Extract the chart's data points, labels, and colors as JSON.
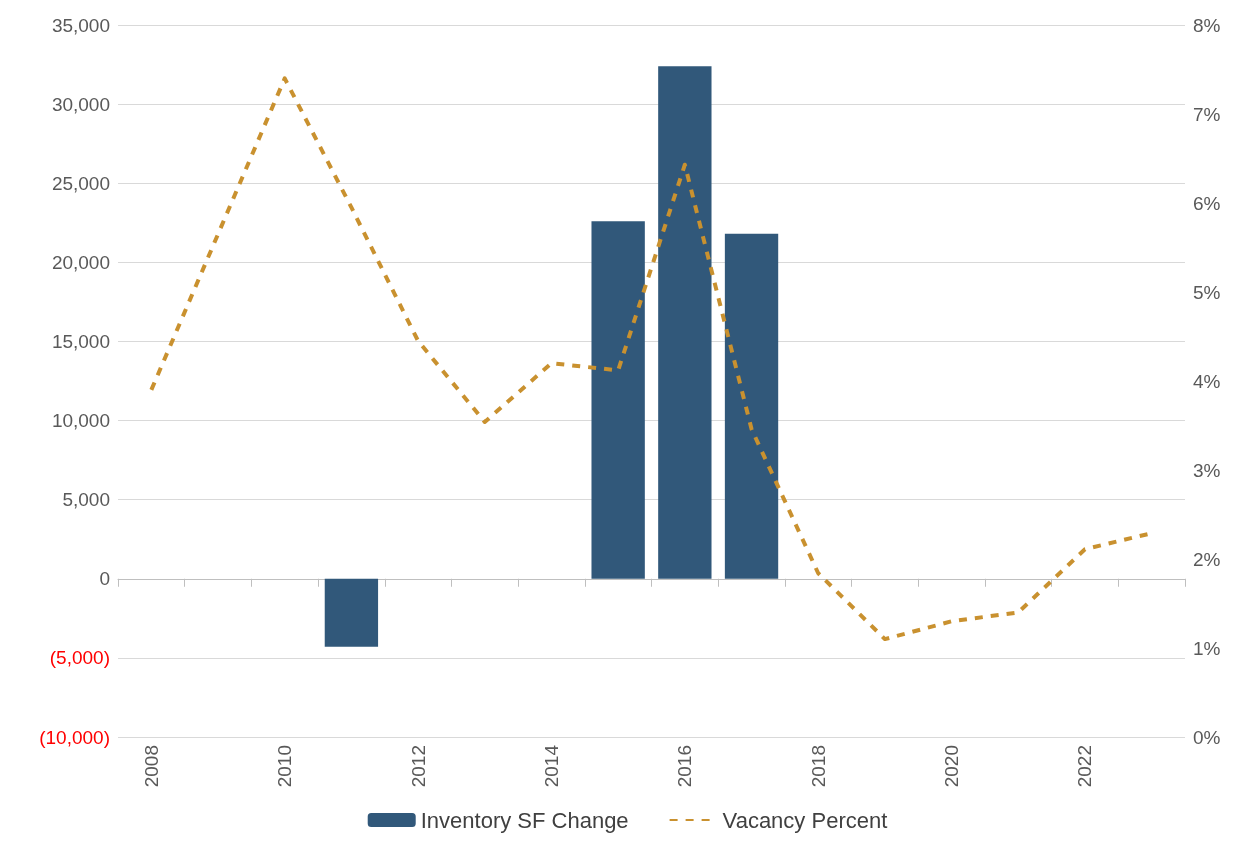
{
  "chart_data": {
    "type": "bar",
    "categories": [
      "2008",
      null,
      "2010",
      null,
      "2012",
      null,
      "2014",
      null,
      "2016",
      null,
      "2018",
      null,
      "2020",
      null,
      "2022",
      null
    ],
    "series": [
      {
        "name": "Inventory SF Change",
        "color": "#31587a",
        "values": [
          null,
          null,
          null,
          -4300,
          null,
          null,
          null,
          22600,
          32400,
          21800,
          null,
          null,
          null,
          null,
          null,
          null
        ]
      },
      {
        "name": "Vacancy Percent",
        "type": "line",
        "axis": "y2",
        "color": "#c9912f",
        "line_style": "dashed",
        "marker": "none",
        "values": [
          3.9,
          5.65,
          7.4,
          5.95,
          4.45,
          3.54,
          4.2,
          4.12,
          6.43,
          3.46,
          1.84,
          1.1,
          1.3,
          1.4,
          2.11,
          2.29
        ]
      }
    ],
    "ylim": [
      -10000,
      35000
    ],
    "yticks": [
      {
        "value": -10000,
        "label": "(10,000)"
      },
      {
        "value": -5000,
        "label": "(5,000)"
      },
      {
        "value": 0,
        "label": "0"
      },
      {
        "value": 5000,
        "label": "5,000"
      },
      {
        "value": 10000,
        "label": "10,000"
      },
      {
        "value": 15000,
        "label": "15,000"
      },
      {
        "value": 20000,
        "label": "20,000"
      },
      {
        "value": 25000,
        "label": "25,000"
      },
      {
        "value": 30000,
        "label": "30,000"
      },
      {
        "value": 35000,
        "label": "35,000"
      }
    ],
    "y2lim": [
      0,
      8
    ],
    "y2ticks": [
      {
        "value": 0,
        "label": "0%"
      },
      {
        "value": 1,
        "label": "1%"
      },
      {
        "value": 2,
        "label": "2%"
      },
      {
        "value": 3,
        "label": "3%"
      },
      {
        "value": 4,
        "label": "4%"
      },
      {
        "value": 5,
        "label": "5%"
      },
      {
        "value": 6,
        "label": "6%"
      },
      {
        "value": 7,
        "label": "7%"
      },
      {
        "value": 8,
        "label": "8%"
      }
    ],
    "grid": "y",
    "legend": "bottom"
  }
}
